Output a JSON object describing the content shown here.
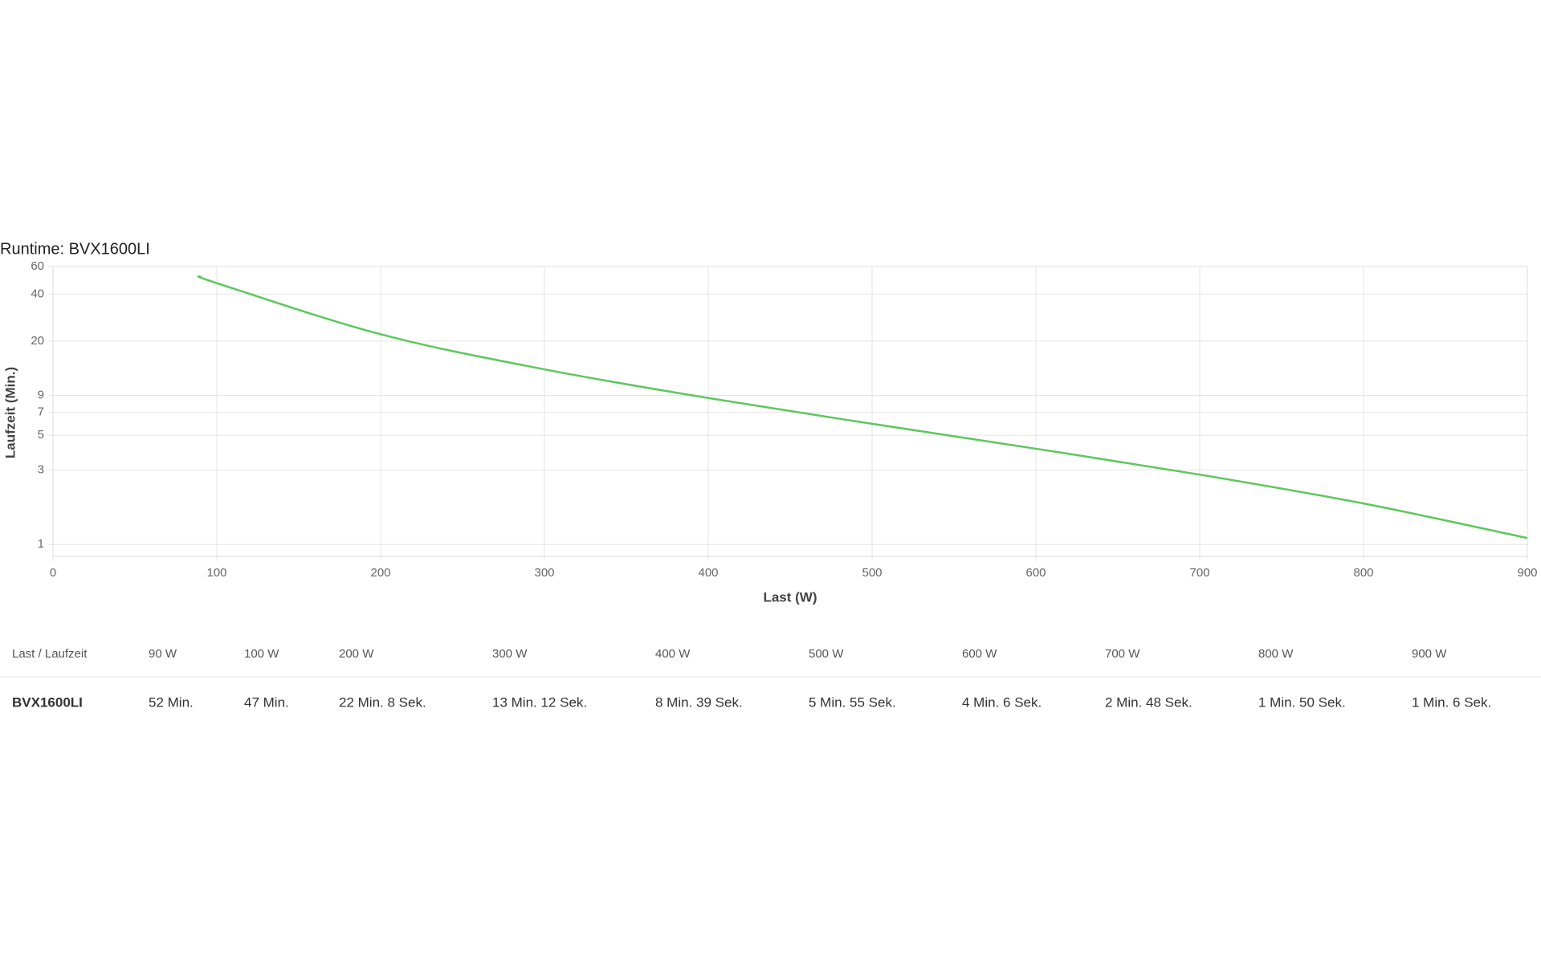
{
  "chart_data": {
    "type": "line",
    "title": "Runtime: BVX1600LI",
    "x_label": "Last (W)",
    "y_label": "Laufzeit (Min.)",
    "x": [
      90,
      100,
      200,
      300,
      400,
      500,
      600,
      700,
      800,
      900
    ],
    "series": [
      {
        "name": "BVX1600LI",
        "color": "#5cc85c",
        "values": [
          52,
          47,
          22.13,
          13.2,
          8.65,
          5.92,
          4.1,
          2.8,
          1.83,
          1.1
        ]
      }
    ],
    "xlim": [
      0,
      900
    ],
    "xticks": [
      0,
      100,
      200,
      300,
      400,
      500,
      600,
      700,
      800,
      900
    ],
    "ylim": [
      0.84,
      60
    ],
    "yticks": [
      1,
      3,
      5,
      7,
      9,
      20,
      40,
      60
    ],
    "y_scale": "log",
    "grid": true
  },
  "table": {
    "header": [
      "Last / Laufzeit",
      "90 W",
      "100 W",
      "200 W",
      "300 W",
      "400 W",
      "500 W",
      "600 W",
      "700 W",
      "800 W",
      "900 W"
    ],
    "rows": [
      [
        "BVX1600LI",
        "52 Min.",
        "47 Min.",
        "22 Min. 8 Sek.",
        "13 Min. 12 Sek.",
        "8 Min. 39 Sek.",
        "5 Min. 55 Sek.",
        "4 Min. 6 Sek.",
        "2 Min. 48 Sek.",
        "1 Min. 50 Sek.",
        "1 Min. 6 Sek."
      ]
    ]
  }
}
